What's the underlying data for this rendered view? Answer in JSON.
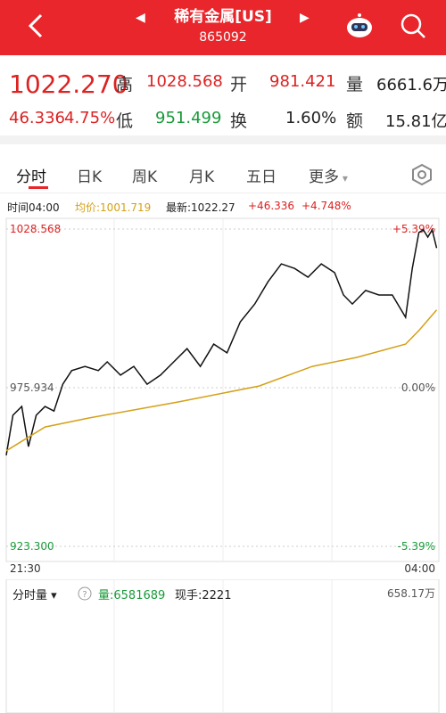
{
  "header": {
    "title": "稀有金属[US]",
    "code": "865092"
  },
  "quote": {
    "price": "1022.270",
    "change": "46.336",
    "change_pct": "4.75%",
    "high_label": "高",
    "high": "1028.568",
    "open_label": "开",
    "open": "981.421",
    "volume_label": "量",
    "volume": "6661.6万",
    "low_label": "低",
    "low": "951.499",
    "turnover_label": "换",
    "turnover": "1.60%",
    "amount_label": "额",
    "amount": "15.81亿"
  },
  "tabs": [
    "分时",
    "日K",
    "周K",
    "月K",
    "五日",
    "更多"
  ],
  "info": {
    "time": "时间04:00",
    "avg": "均价:1001.719",
    "last": "最新:1022.27",
    "change": "+46.336",
    "change_pct": "+4.748%"
  },
  "chart": {
    "type": "line",
    "xlim": [
      0,
      390
    ],
    "xticks": [
      {
        "value": 0,
        "label": "21:30"
      },
      {
        "value": 390,
        "label": "04:00"
      }
    ],
    "ylim": [
      923.3,
      1028.568
    ],
    "yticks": [
      {
        "value": 923.3,
        "label": "923.300"
      },
      {
        "value": 975.934,
        "label": "975.934"
      },
      {
        "value": 1028.568,
        "label": "1028.568"
      }
    ],
    "pct_labels": [
      "-5.39%",
      "0.00%",
      "+5.39%"
    ],
    "series": [
      {
        "color": "#111111",
        "x": [
          0,
          6,
          14,
          20,
          27,
          35,
          43,
          51,
          59,
          71,
          83,
          91,
          103,
          115,
          127,
          139,
          151,
          163,
          175,
          187,
          199,
          211,
          224,
          236,
          248,
          260,
          272,
          284,
          296,
          304,
          312,
          324,
          336,
          348,
          360,
          366,
          372,
          376,
          380,
          384,
          388
        ],
        "values": [
          953.5,
          966.8,
          969.7,
          956.4,
          966.8,
          969.7,
          968.2,
          977.1,
          981.6,
          983.0,
          981.6,
          984.5,
          980.1,
          983.0,
          977.1,
          980.1,
          984.5,
          988.9,
          983.0,
          990.4,
          987.5,
          997.8,
          1003.7,
          1011.1,
          1017.0,
          1015.5,
          1012.6,
          1017.0,
          1014.1,
          1006.7,
          1003.7,
          1008.2,
          1006.7,
          1006.7,
          999.3,
          1015.5,
          1027.4,
          1028.3,
          1025.9,
          1028.3,
          1022.27
        ]
      },
      {
        "color": "#d4a017",
        "x": [
          0,
          35,
          75,
          155,
          228,
          276,
          316,
          360,
          372,
          388
        ],
        "values": [
          955.0,
          962.9,
          965.9,
          971.2,
          976.5,
          983.0,
          986.0,
          990.4,
          994.9,
          1001.719
        ]
      }
    ]
  },
  "volume": {
    "label": "分时量",
    "volume": "量:6581689",
    "hand": "现手:2221",
    "max": "658.17万"
  }
}
